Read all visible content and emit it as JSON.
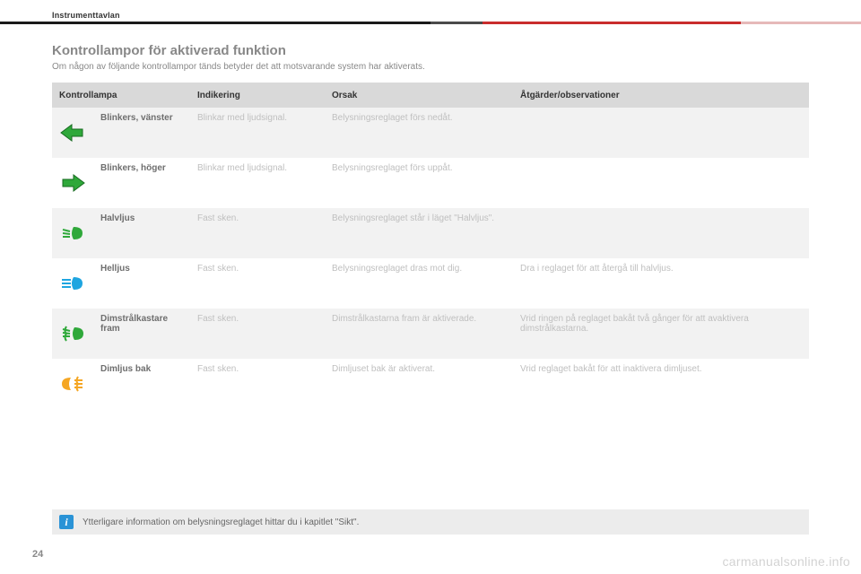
{
  "section_label": "Instrumenttavlan",
  "title": "Kontrollampor för aktiverad funktion",
  "subtitle": "Om någon av följande kontrollampor tänds betyder det att motsvarande system har aktiverats.",
  "header_bar": {
    "segments": [
      {
        "color": "#1a1a1a",
        "flex": 50
      },
      {
        "color": "#4a4a4a",
        "flex": 6
      },
      {
        "color": "#c92c2c",
        "flex": 30
      },
      {
        "color": "#e6b9b9",
        "flex": 14
      }
    ]
  },
  "table": {
    "columns": [
      "Kontrollampa",
      "Indikering",
      "Orsak",
      "Åtgärder/observationer"
    ],
    "rows": [
      {
        "icon": "arrow-left",
        "icon_color": "#2fa83a",
        "name": "Blinkers, vänster",
        "indikering": "Blinkar med ljudsignal.",
        "orsak": "Belysningsreglaget förs nedåt.",
        "atgard": ""
      },
      {
        "icon": "arrow-right",
        "icon_color": "#2fa83a",
        "name": "Blinkers, höger",
        "indikering": "Blinkar med ljudsignal.",
        "orsak": "Belysningsreglaget förs uppåt.",
        "atgard": ""
      },
      {
        "icon": "low-beam",
        "icon_color": "#2fa83a",
        "name": "Halvljus",
        "indikering": "Fast sken.",
        "orsak": "Belysningsreglaget står i läget \"Halvljus\".",
        "atgard": ""
      },
      {
        "icon": "high-beam",
        "icon_color": "#1ea5e0",
        "name": "Helljus",
        "indikering": "Fast sken.",
        "orsak": "Belysningsreglaget dras mot dig.",
        "atgard": "Dra i reglaget för att återgå till halvljus."
      },
      {
        "icon": "front-fog",
        "icon_color": "#2fa83a",
        "name": "Dimstrålkastare fram",
        "indikering": "Fast sken.",
        "orsak": "Dimstrålkastarna fram är aktiverade.",
        "atgard": "Vrid ringen på reglaget bakåt två gånger för att avaktivera dimstrålkastarna."
      },
      {
        "icon": "rear-fog",
        "icon_color": "#f5a623",
        "name": "Dimljus bak",
        "indikering": "Fast sken.",
        "orsak": "Dimljuset bak är aktiverat.",
        "atgard": "Vrid reglaget bakåt för att inaktivera dimljuset."
      }
    ]
  },
  "info_text": "Ytterligare information om belysningsreglaget hittar du i kapitlet \"Sikt\".",
  "page_number": "24",
  "watermark": "carmanualsonline.info",
  "colors": {
    "header_bg": "#d9d9d9",
    "row_odd": "#f2f2f2",
    "row_even": "#ffffff",
    "faded_text": "#bfbfbf",
    "name_text": "#6e6e6e",
    "title_text": "#888888"
  }
}
